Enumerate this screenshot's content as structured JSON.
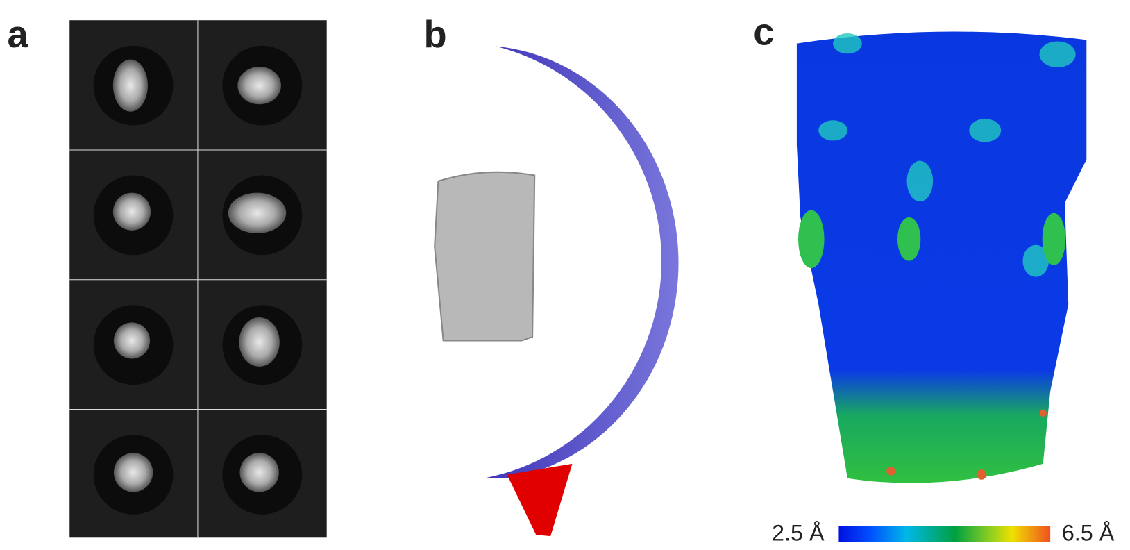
{
  "panels": [
    {
      "label": "a"
    },
    {
      "label": "b"
    },
    {
      "label": "c"
    }
  ],
  "colorbar": {
    "min_label": "2.5 Å",
    "max_label": "6.5 Å"
  }
}
